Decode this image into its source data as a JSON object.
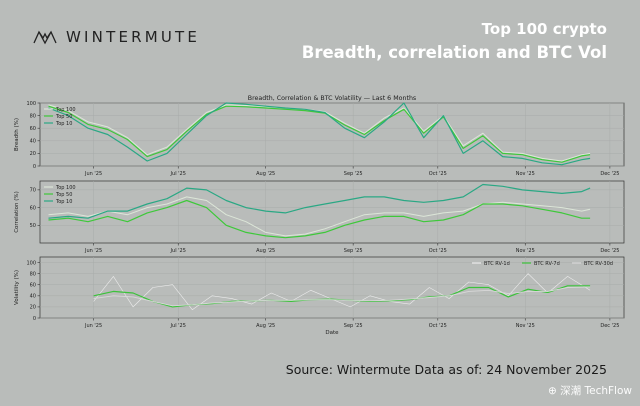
{
  "brand": {
    "logo_icon": "wintermute-bird-icon",
    "name": "WINTERMUTE"
  },
  "header": {
    "title": "Top 100 crypto",
    "subtitle": "Breadth, correlation and BTC Vol"
  },
  "footer": {
    "source": "Source: Wintermute  Data as of: 24 November 2025",
    "watermark": "⊕ 深潮 TechFlow"
  },
  "chart_data": {
    "title": "Breadth, Correlation & BTC Volatility — Last 6 Months",
    "x_ticks": [
      "Jun '25",
      "Jul '25",
      "Aug '25",
      "Sep '25",
      "Oct '25",
      "Nov '25",
      "Dec '25"
    ],
    "xlabel": "Date",
    "colors": {
      "top100": "#dce6d8",
      "top50": "#3ec83a",
      "top10": "#2aa884",
      "rv1d": "#ececec",
      "rv7d": "#3bc23a",
      "rv30d": "#d8d8d8"
    },
    "panels": [
      {
        "type": "line",
        "ylabel": "Breadth (%)",
        "ylim": [
          0,
          100
        ],
        "yticks": [
          0,
          20,
          40,
          60,
          80,
          100
        ],
        "legend_position": "upper-left",
        "x": [
          "2025-05-16",
          "2025-05-23",
          "2025-05-30",
          "2025-06-06",
          "2025-06-13",
          "2025-06-20",
          "2025-06-27",
          "2025-07-04",
          "2025-07-11",
          "2025-07-18",
          "2025-07-25",
          "2025-08-01",
          "2025-08-08",
          "2025-08-15",
          "2025-08-22",
          "2025-08-29",
          "2025-09-05",
          "2025-09-12",
          "2025-09-19",
          "2025-09-26",
          "2025-10-03",
          "2025-10-10",
          "2025-10-17",
          "2025-10-24",
          "2025-10-31",
          "2025-11-07",
          "2025-11-14",
          "2025-11-21",
          "2025-11-24"
        ],
        "series": [
          {
            "name": "Top 100",
            "values": [
              97,
              88,
              70,
              62,
              45,
              18,
              30,
              58,
              85,
              97,
              96,
              94,
              92,
              90,
              86,
              68,
              52,
              76,
              92,
              55,
              80,
              32,
              52,
              22,
              20,
              12,
              8,
              18,
              20
            ]
          },
          {
            "name": "Top 50",
            "values": [
              95,
              85,
              66,
              58,
              42,
              15,
              26,
              55,
              82,
              95,
              94,
              92,
              90,
              88,
              84,
              65,
              50,
              72,
              90,
              52,
              78,
              28,
              48,
              20,
              18,
              10,
              6,
              16,
              18
            ]
          },
          {
            "name": "Top 10",
            "values": [
              92,
              80,
              60,
              50,
              30,
              8,
              20,
              50,
              80,
              100,
              98,
              95,
              92,
              90,
              85,
              60,
              45,
              70,
              100,
              45,
              80,
              20,
              40,
              15,
              12,
              5,
              2,
              10,
              12
            ]
          }
        ]
      },
      {
        "type": "line",
        "ylabel": "Correlation (%)",
        "ylim": [
          40,
          75
        ],
        "yticks": [
          50,
          60,
          70
        ],
        "legend_position": "upper-left",
        "x": [
          "2025-05-16",
          "2025-05-23",
          "2025-05-30",
          "2025-06-06",
          "2025-06-13",
          "2025-06-20",
          "2025-06-27",
          "2025-07-04",
          "2025-07-11",
          "2025-07-18",
          "2025-07-25",
          "2025-08-01",
          "2025-08-08",
          "2025-08-15",
          "2025-08-22",
          "2025-08-29",
          "2025-09-05",
          "2025-09-12",
          "2025-09-19",
          "2025-09-26",
          "2025-10-03",
          "2025-10-10",
          "2025-10-17",
          "2025-10-24",
          "2025-10-31",
          "2025-11-07",
          "2025-11-14",
          "2025-11-21",
          "2025-11-24"
        ],
        "series": [
          {
            "name": "Top 100",
            "values": [
              56,
              57,
              55,
              58,
              56,
              60,
              62,
              66,
              64,
              56,
              52,
              46,
              44,
              45,
              48,
              52,
              56,
              57,
              57,
              55,
              57,
              58,
              62,
              63,
              62,
              61,
              60,
              58,
              59
            ]
          },
          {
            "name": "Top 50",
            "values": [
              53,
              54,
              52,
              55,
              52,
              57,
              60,
              64,
              60,
              50,
              46,
              44,
              43,
              44,
              46,
              50,
              53,
              55,
              55,
              52,
              53,
              56,
              62,
              62,
              61,
              59,
              57,
              54,
              54
            ]
          },
          {
            "name": "Top 10",
            "values": [
              54,
              55,
              54,
              58,
              58,
              62,
              65,
              71,
              70,
              64,
              60,
              58,
              57,
              60,
              62,
              64,
              66,
              66,
              64,
              63,
              64,
              66,
              73,
              72,
              70,
              69,
              68,
              69,
              71
            ]
          }
        ]
      },
      {
        "type": "line",
        "ylabel": "Volatility (%)",
        "ylim": [
          0,
          110
        ],
        "yticks": [
          0,
          20,
          40,
          60,
          80,
          100
        ],
        "legend_position": "upper-right",
        "x": [
          "2025-06-01",
          "2025-06-08",
          "2025-06-15",
          "2025-06-22",
          "2025-06-29",
          "2025-07-06",
          "2025-07-13",
          "2025-07-20",
          "2025-07-27",
          "2025-08-03",
          "2025-08-10",
          "2025-08-17",
          "2025-08-24",
          "2025-08-31",
          "2025-09-07",
          "2025-09-14",
          "2025-09-21",
          "2025-09-28",
          "2025-10-05",
          "2025-10-12",
          "2025-10-19",
          "2025-10-26",
          "2025-11-02",
          "2025-11-09",
          "2025-11-16",
          "2025-11-24"
        ],
        "series": [
          {
            "name": "BTC RV-1d",
            "values": [
              30,
              75,
              20,
              55,
              60,
              15,
              40,
              35,
              25,
              45,
              30,
              50,
              35,
              20,
              40,
              30,
              25,
              55,
              35,
              65,
              60,
              40,
              80,
              45,
              75,
              50
            ]
          },
          {
            "name": "BTC RV-7d",
            "values": [
              40,
              48,
              45,
              30,
              20,
              24,
              26,
              30,
              31,
              32,
              30,
              33,
              34,
              32,
              30,
              31,
              33,
              38,
              40,
              55,
              55,
              38,
              52,
              46,
              58,
              58
            ]
          },
          {
            "name": "BTC RV-30d",
            "values": [
              35,
              40,
              38,
              30,
              22,
              24,
              27,
              29,
              31,
              32,
              32,
              33,
              33,
              32,
              31,
              32,
              34,
              37,
              40,
              48,
              50,
              44,
              48,
              48,
              55,
              56
            ]
          }
        ]
      }
    ]
  }
}
